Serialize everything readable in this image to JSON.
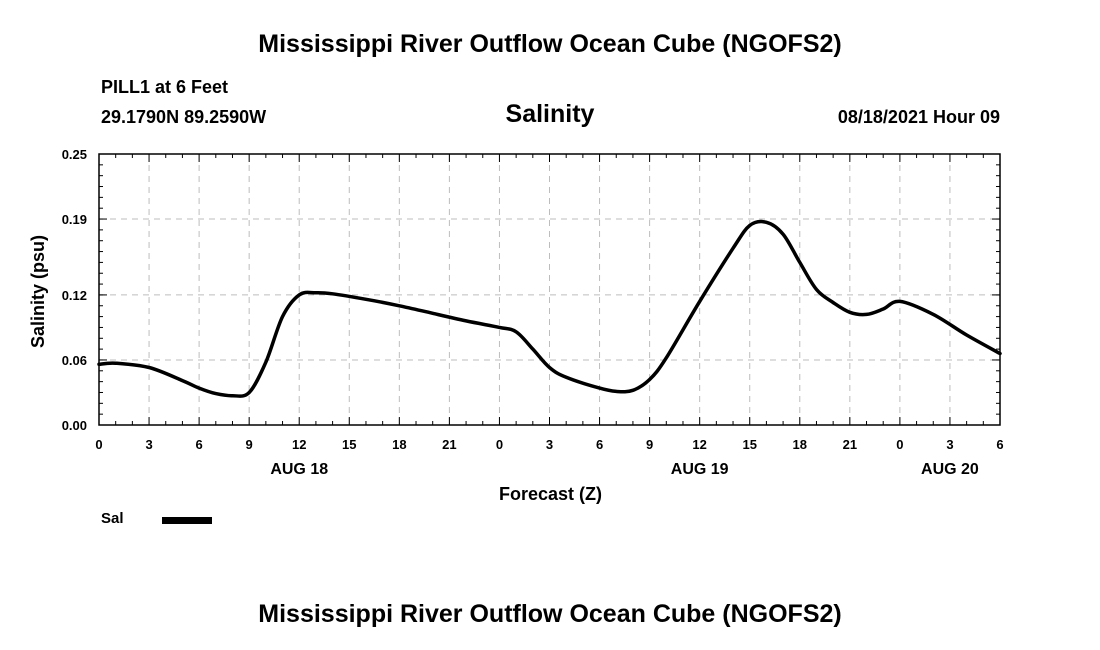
{
  "header": {
    "title": "Mississippi River Outflow Ocean Cube (NGOFS2)",
    "station": "PILL1 at 6 Feet",
    "coords": "29.1790N  89.2590W",
    "subtitle": "Salinity",
    "datetime": "08/18/2021 Hour 09"
  },
  "footer": {
    "title": "Mississippi River Outflow Ocean Cube (NGOFS2)"
  },
  "chart_data": {
    "type": "line",
    "title": "Salinity",
    "xlabel": "Forecast (Z)",
    "ylabel": "Salinity (psu)",
    "xlim": [
      0,
      54
    ],
    "ylim": [
      0.0,
      0.25
    ],
    "yticks": [
      0.0,
      0.06,
      0.12,
      0.19,
      0.25
    ],
    "ytick_labels": [
      "0.00",
      "0.06",
      "0.12",
      "0.19",
      "0.25"
    ],
    "xticks": [
      0,
      3,
      6,
      9,
      12,
      15,
      18,
      21,
      24,
      27,
      30,
      33,
      36,
      39,
      42,
      45,
      48,
      51,
      54
    ],
    "xtick_labels": [
      "0",
      "3",
      "6",
      "9",
      "12",
      "15",
      "18",
      "21",
      "0",
      "3",
      "6",
      "9",
      "12",
      "15",
      "18",
      "21",
      "0",
      "3",
      "6"
    ],
    "day_labels": [
      {
        "x": 12,
        "label": "AUG 18"
      },
      {
        "x": 36,
        "label": "AUG 19"
      },
      {
        "x": 51,
        "label": "AUG 20"
      }
    ],
    "grid": true,
    "legend": "bottom-left",
    "series": [
      {
        "name": "Sal",
        "x": [
          0,
          1,
          3,
          5,
          6,
          7,
          8,
          9,
          10,
          11,
          12,
          13,
          14,
          16,
          18,
          20,
          22,
          24,
          25,
          26,
          27,
          28,
          30,
          31,
          32,
          33,
          34,
          36,
          38,
          39,
          40,
          41,
          42,
          43,
          44,
          45,
          46,
          47,
          48,
          50,
          52,
          54
        ],
        "y": [
          0.056,
          0.057,
          0.053,
          0.041,
          0.034,
          0.029,
          0.027,
          0.03,
          0.058,
          0.1,
          0.12,
          0.122,
          0.121,
          0.116,
          0.11,
          0.103,
          0.096,
          0.09,
          0.086,
          0.07,
          0.053,
          0.044,
          0.034,
          0.031,
          0.032,
          0.042,
          0.062,
          0.114,
          0.163,
          0.184,
          0.187,
          0.176,
          0.15,
          0.125,
          0.113,
          0.104,
          0.102,
          0.107,
          0.114,
          0.102,
          0.083,
          0.066
        ]
      }
    ]
  }
}
